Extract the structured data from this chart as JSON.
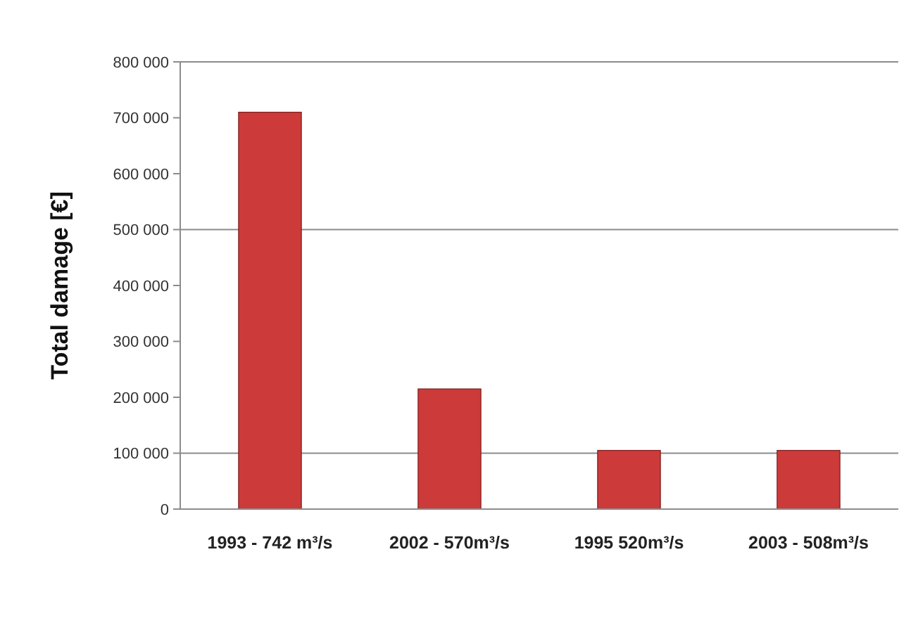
{
  "chart_data": {
    "type": "bar",
    "ylabel": "Total damage [€]",
    "categories": [
      "1993 - 742 m³/s",
      "2002 - 570m³/s",
      "1995 520m³/s",
      "2003 - 508m³/s"
    ],
    "values": [
      710000,
      215000,
      105000,
      105000
    ],
    "color": "#cc3a3a",
    "ylim": [
      0,
      800000
    ],
    "yticks": [
      {
        "value": 0,
        "label": "0"
      },
      {
        "value": 100000,
        "label": "100 000"
      },
      {
        "value": 200000,
        "label": "200 000"
      },
      {
        "value": 300000,
        "label": "300 000"
      },
      {
        "value": 400000,
        "label": "400 000"
      },
      {
        "value": 500000,
        "label": "500 000"
      },
      {
        "value": 600000,
        "label": "600 000"
      },
      {
        "value": 700000,
        "label": "700 000"
      },
      {
        "value": 800000,
        "label": "800 000"
      }
    ],
    "ref_lines": [
      {
        "axis": "y",
        "value": 100000,
        "label": null,
        "color": "#8c8c8c"
      },
      {
        "axis": "y",
        "value": 500000,
        "label": null,
        "color": "#8c8c8c"
      }
    ],
    "grid": false
  }
}
